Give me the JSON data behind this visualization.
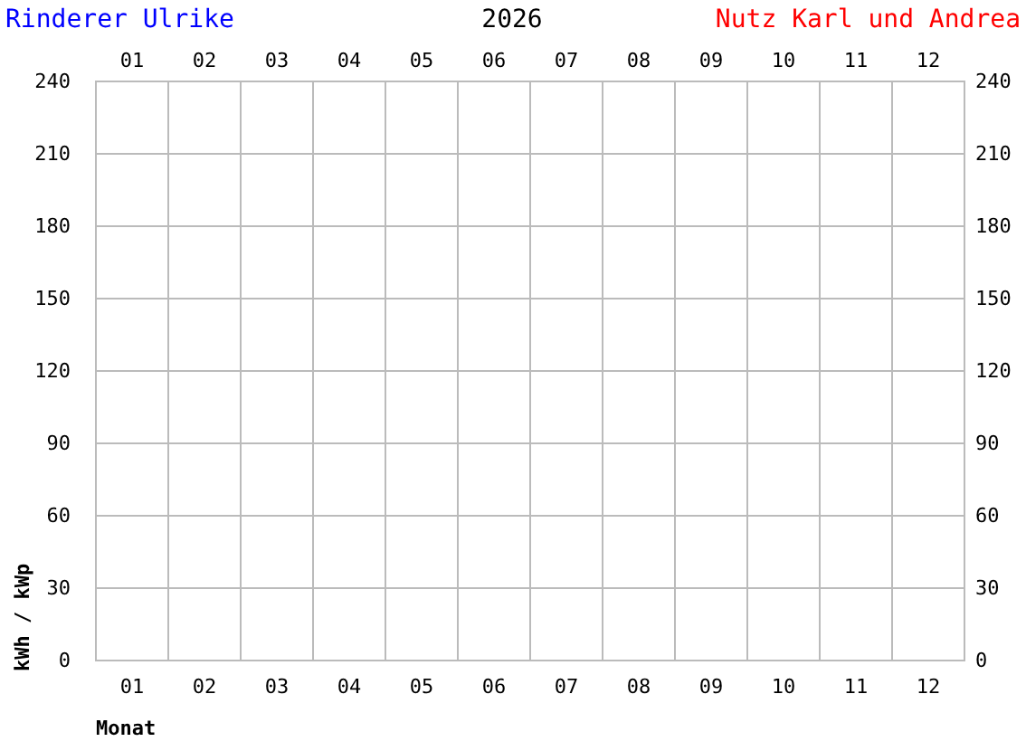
{
  "chart_data": {
    "type": "bar",
    "title": "2026",
    "annotations": [
      "Rinderer Ulrike",
      "Nutz Karl und Andrea"
    ],
    "xlabel": "Monat",
    "ylabel": "kWh / kWp",
    "categories": [
      "01",
      "02",
      "03",
      "04",
      "05",
      "06",
      "07",
      "08",
      "09",
      "10",
      "11",
      "12"
    ],
    "values": [
      null,
      null,
      null,
      null,
      null,
      null,
      null,
      null,
      null,
      null,
      null,
      null
    ],
    "ylim": [
      0,
      240
    ],
    "yticks": [
      0,
      30,
      60,
      90,
      120,
      150,
      180,
      210,
      240
    ],
    "y2lim": [
      0,
      240
    ],
    "y2ticks": [
      0,
      30,
      60,
      90,
      120,
      150,
      180,
      210,
      240
    ],
    "grid": true
  }
}
